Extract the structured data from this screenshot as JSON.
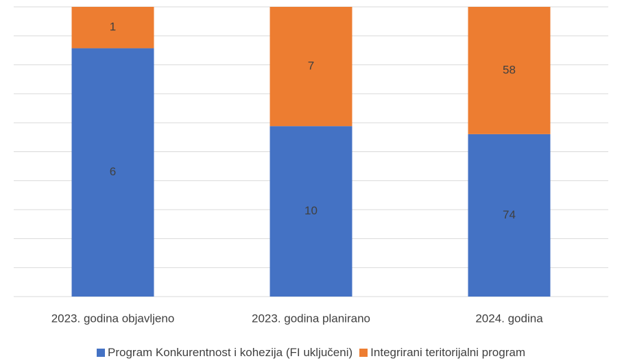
{
  "chart_data": {
    "type": "bar",
    "stacked": "percent",
    "categories": [
      "2023. godina objavljeno",
      "2023. godina planirano",
      "2024. godina"
    ],
    "series": [
      {
        "name": "Program Konkurentnost i kohezija (FI uključeni)",
        "color": "#4472c4",
        "values": [
          6,
          10,
          74
        ]
      },
      {
        "name": "Integrirani teritorijalni program",
        "color": "#ed7d31",
        "values": [
          1,
          7,
          58
        ]
      }
    ],
    "grid": true,
    "legend": "bottom"
  }
}
